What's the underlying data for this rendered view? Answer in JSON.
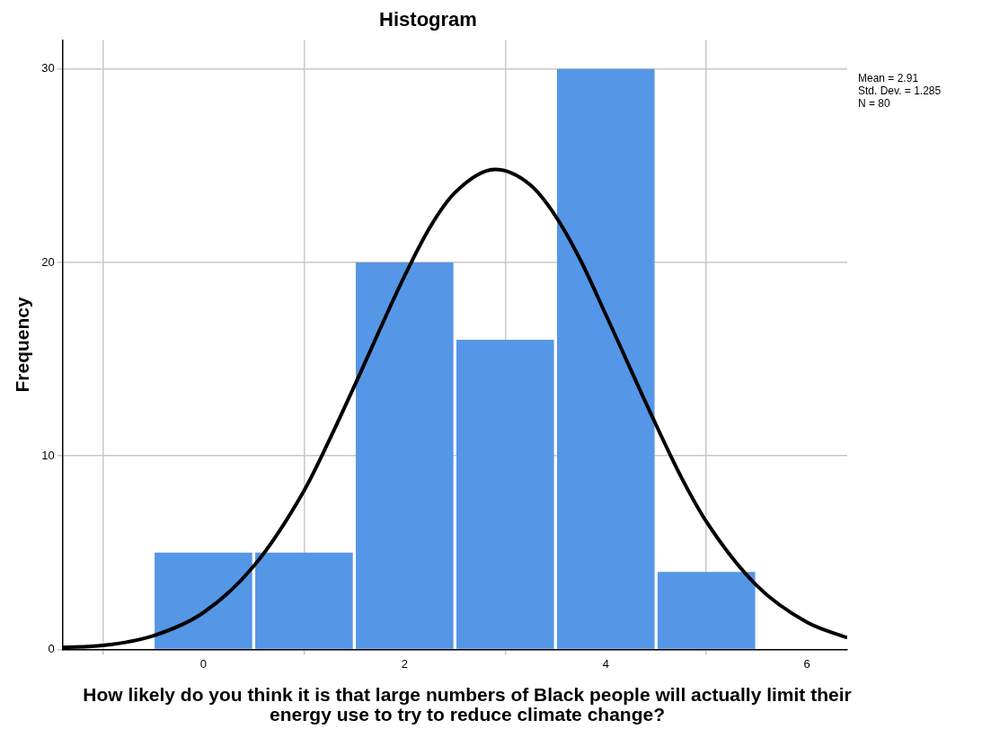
{
  "chart_data": {
    "type": "histogram",
    "title": "Histogram",
    "xlabel": "How likely do you think it is that large numbers of Black people will actually limit their energy use to try to reduce climate change?",
    "ylabel": "Frequency",
    "annotations": [
      "Mean = 2.91",
      "Std. Dev. = 1.285",
      "N = 80"
    ],
    "series": [
      {
        "type": "histogram",
        "color": "#5596e6",
        "bins": [
          -0.5,
          0.5,
          1.5,
          2.5,
          3.5,
          4.5,
          5.5
        ],
        "values": [
          5,
          5,
          20,
          16,
          30,
          4
        ]
      },
      {
        "type": "line",
        "color": "#000000",
        "x": [
          -1.4,
          -1,
          -0.5,
          0,
          0.5,
          1,
          1.25,
          1.5,
          2,
          2.25,
          2.5,
          2.9,
          3.25,
          3.5,
          3.75,
          4,
          4.5,
          4.75,
          5,
          5.5,
          6,
          6.4
        ],
        "values": [
          0.1,
          0.2,
          0.7,
          1.9,
          4.3,
          8.2,
          10.8,
          13.6,
          19.3,
          21.8,
          23.6,
          24.8,
          24,
          22.4,
          20.1,
          17.3,
          11.6,
          8.9,
          6.6,
          3.3,
          1.4,
          0.6
        ]
      }
    ],
    "xlim": [
      -1.4,
      6.4
    ],
    "xticks": [
      0,
      2,
      4,
      6
    ],
    "ylim": [
      0,
      31.5
    ],
    "yticks": [
      0,
      10,
      20,
      30
    ],
    "grid": true,
    "legend": false,
    "marker": "none",
    "line_style": "solid"
  }
}
